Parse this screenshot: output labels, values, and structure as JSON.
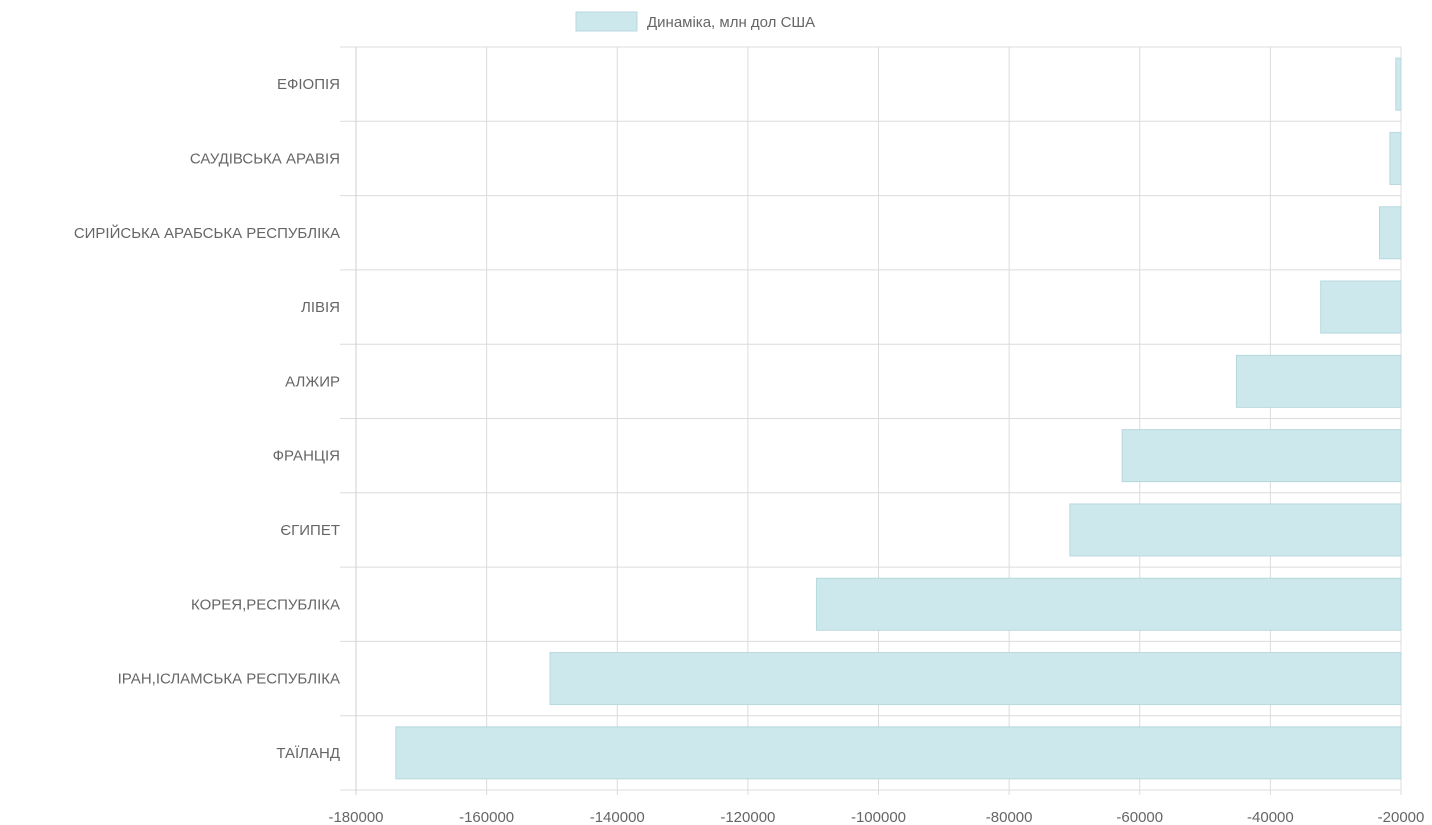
{
  "legend": {
    "label": "Динаміка, млн дол США",
    "color": "#cde8ec",
    "border": "#b6d9de"
  },
  "chart_data": {
    "type": "bar",
    "orientation": "horizontal",
    "categories": [
      "ЕФІОПІЯ",
      "САУДІВСЬКА АРАВІЯ",
      "СИРІЙСЬКА АРАБСЬКА РЕСПУБЛІКА",
      "ЛІВІЯ",
      "АЛЖИР",
      "ФРАНЦІЯ",
      "ЄГИПЕТ",
      "КОРЕЯ,РЕСПУБЛІКА",
      "ІРАН,ІСЛАМСЬКА РЕСПУБЛІКА",
      "ТАЇЛАНД"
    ],
    "series": [
      {
        "name": "Динаміка, млн дол США",
        "values": [
          -20800,
          -21700,
          -23300,
          -32300,
          -45200,
          -62700,
          -70700,
          -109500,
          -150300,
          -173900
        ]
      }
    ],
    "xlim": [
      -180000,
      -20000
    ],
    "xticks": [
      "-180000",
      "-160000",
      "-140000",
      "-120000",
      "-100000",
      "-80000",
      "-60000",
      "-40000",
      "-20000"
    ],
    "grid": true,
    "legend_position": "top"
  }
}
